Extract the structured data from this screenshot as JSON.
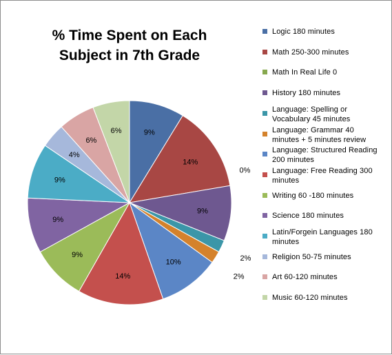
{
  "chart_data": {
    "type": "pie",
    "title_lines": [
      "% Time Spent on Each",
      "Subject in 7th Grade"
    ],
    "legend_position": "right",
    "slices": [
      {
        "name": "Logic 180 minutes",
        "name_lines": [
          "Logic 180 minutes"
        ],
        "value": 9,
        "label": "9%",
        "color": "#4a6fa5"
      },
      {
        "name": "Math 250-300 minutes",
        "name_lines": [
          "Math 250-300 minutes"
        ],
        "value": 14,
        "label": "14%",
        "color": "#a84744"
      },
      {
        "name": "Math In Real Life 0",
        "name_lines": [
          "Math In Real Life 0"
        ],
        "value": 0,
        "label": "0%",
        "color": "#87a84e"
      },
      {
        "name": "History 180 minutes",
        "name_lines": [
          "History 180 minutes"
        ],
        "value": 9,
        "label": "9%",
        "color": "#6e5890"
      },
      {
        "name": "Language: Spelling or Vocabulary 45 minutes",
        "name_lines": [
          "Language: Spelling or",
          "Vocabulary 45 minutes"
        ],
        "value": 2,
        "label": "2%",
        "color": "#3b96a8"
      },
      {
        "name": "Language: Grammar 40 minutes + 5 minutes review",
        "name_lines": [
          "Language: Grammar 40",
          "minutes + 5 minutes review"
        ],
        "value": 2,
        "label": "2%",
        "color": "#d4822c"
      },
      {
        "name": "Language: Structured Reading 200 minutes",
        "name_lines": [
          "Language: Structured Reading",
          "200 minutes"
        ],
        "value": 10,
        "label": "10%",
        "color": "#5b86c6"
      },
      {
        "name": "Language: Free Reading 300 minutes",
        "name_lines": [
          "Language: Free Reading 300",
          "minutes"
        ],
        "value": 14,
        "label": "14%",
        "color": "#c4504d"
      },
      {
        "name": "Writing 60 -180 minutes",
        "name_lines": [
          "Writing 60 -180 minutes"
        ],
        "value": 9,
        "label": "9%",
        "color": "#9bbb59"
      },
      {
        "name": "Science 180 minutes",
        "name_lines": [
          "Science 180 minutes"
        ],
        "value": 9,
        "label": "9%",
        "color": "#8064a2"
      },
      {
        "name": "Latin/Forgein Languages 180 minutes",
        "name_lines": [
          "Latin/Forgein Languages 180",
          "minutes"
        ],
        "value": 9,
        "label": "9%",
        "color": "#4bacc6"
      },
      {
        "name": "Religion 50-75 minutes",
        "name_lines": [
          "Religion 50-75 minutes"
        ],
        "value": 4,
        "label": "4%",
        "color": "#a6b8db"
      },
      {
        "name": "Art 60-120 minutes",
        "name_lines": [
          "Art 60-120 minutes"
        ],
        "value": 6,
        "label": "6%",
        "color": "#d9a5a4"
      },
      {
        "name": "Music 60-120 minutes",
        "name_lines": [
          "Music 60-120 minutes"
        ],
        "value": 6,
        "label": "6%",
        "color": "#c3d6a8"
      }
    ]
  }
}
